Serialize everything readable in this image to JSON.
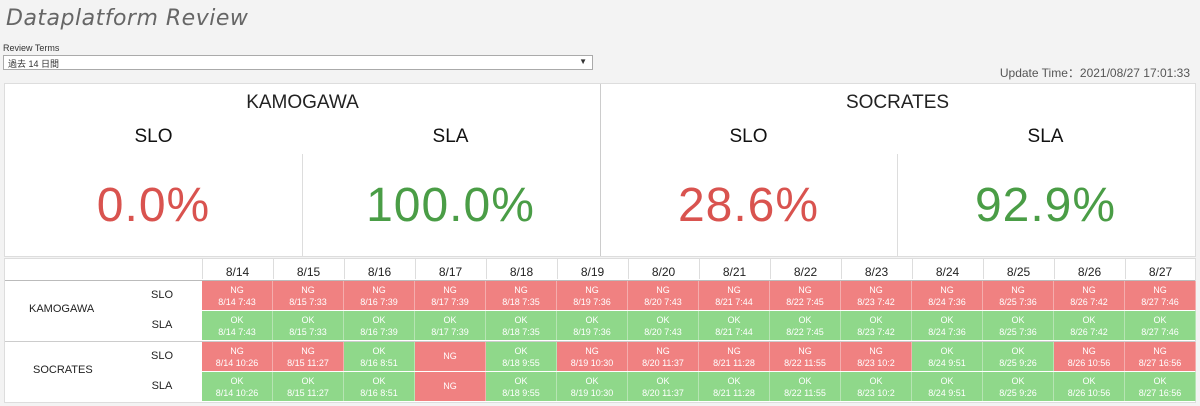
{
  "title": "Dataplatform  Review",
  "review_terms": {
    "label": "Review Terms",
    "value": "過去 14 日間",
    "arrow": "▼"
  },
  "update_time": "Update Time：2021/08/27 17:01:33",
  "colors": {
    "ng": "#f08181",
    "ok": "#8fd88a",
    "value_red": "#d9534f",
    "value_green": "#4a9d46"
  },
  "summary": [
    {
      "name": "KAMOGAWA",
      "metrics": [
        {
          "label": "SLO",
          "value": "0.0%",
          "status": "red"
        },
        {
          "label": "SLA",
          "value": "100.0%",
          "status": "green"
        }
      ]
    },
    {
      "name": "SOCRATES",
      "metrics": [
        {
          "label": "SLO",
          "value": "28.6%",
          "status": "red"
        },
        {
          "label": "SLA",
          "value": "92.9%",
          "status": "green"
        }
      ]
    }
  ],
  "dates": [
    "8/14",
    "8/15",
    "8/16",
    "8/17",
    "8/18",
    "8/19",
    "8/20",
    "8/21",
    "8/22",
    "8/23",
    "8/24",
    "8/25",
    "8/26",
    "8/27"
  ],
  "services": [
    {
      "name": "KAMOGAWA",
      "rows": [
        {
          "metric": "SLO",
          "cells": [
            {
              "status": "NG",
              "time": "8/14 7:43"
            },
            {
              "status": "NG",
              "time": "8/15 7:33"
            },
            {
              "status": "NG",
              "time": "8/16 7:39"
            },
            {
              "status": "NG",
              "time": "8/17 7:39"
            },
            {
              "status": "NG",
              "time": "8/18 7:35"
            },
            {
              "status": "NG",
              "time": "8/19 7:36"
            },
            {
              "status": "NG",
              "time": "8/20 7:43"
            },
            {
              "status": "NG",
              "time": "8/21 7:44"
            },
            {
              "status": "NG",
              "time": "8/22 7:45"
            },
            {
              "status": "NG",
              "time": "8/23 7:42"
            },
            {
              "status": "NG",
              "time": "8/24 7:36"
            },
            {
              "status": "NG",
              "time": "8/25 7:36"
            },
            {
              "status": "NG",
              "time": "8/26 7:42"
            },
            {
              "status": "NG",
              "time": "8/27 7:46"
            }
          ]
        },
        {
          "metric": "SLA",
          "cells": [
            {
              "status": "OK",
              "time": "8/14 7:43"
            },
            {
              "status": "OK",
              "time": "8/15 7:33"
            },
            {
              "status": "OK",
              "time": "8/16 7:39"
            },
            {
              "status": "OK",
              "time": "8/17 7:39"
            },
            {
              "status": "OK",
              "time": "8/18 7:35"
            },
            {
              "status": "OK",
              "time": "8/19 7:36"
            },
            {
              "status": "OK",
              "time": "8/20 7:43"
            },
            {
              "status": "OK",
              "time": "8/21 7:44"
            },
            {
              "status": "OK",
              "time": "8/22 7:45"
            },
            {
              "status": "OK",
              "time": "8/23 7:42"
            },
            {
              "status": "OK",
              "time": "8/24 7:36"
            },
            {
              "status": "OK",
              "time": "8/25 7:36"
            },
            {
              "status": "OK",
              "time": "8/26 7:42"
            },
            {
              "status": "OK",
              "time": "8/27 7:46"
            }
          ]
        }
      ]
    },
    {
      "name": "SOCRATES",
      "rows": [
        {
          "metric": "SLO",
          "cells": [
            {
              "status": "NG",
              "time": "8/14 10:26"
            },
            {
              "status": "NG",
              "time": "8/15 11:27"
            },
            {
              "status": "OK",
              "time": "8/16 8:51"
            },
            {
              "status": "NG",
              "time": ""
            },
            {
              "status": "OK",
              "time": "8/18 9:55"
            },
            {
              "status": "NG",
              "time": "8/19 10:30"
            },
            {
              "status": "NG",
              "time": "8/20 11:37"
            },
            {
              "status": "NG",
              "time": "8/21 11:28"
            },
            {
              "status": "NG",
              "time": "8/22 11:55"
            },
            {
              "status": "NG",
              "time": "8/23 10:2"
            },
            {
              "status": "OK",
              "time": "8/24 9:51"
            },
            {
              "status": "OK",
              "time": "8/25 9:26"
            },
            {
              "status": "NG",
              "time": "8/26 10:56"
            },
            {
              "status": "NG",
              "time": "8/27 16:56"
            }
          ]
        },
        {
          "metric": "SLA",
          "cells": [
            {
              "status": "OK",
              "time": "8/14 10:26"
            },
            {
              "status": "OK",
              "time": "8/15 11:27"
            },
            {
              "status": "OK",
              "time": "8/16 8:51"
            },
            {
              "status": "NG",
              "time": ""
            },
            {
              "status": "OK",
              "time": "8/18 9:55"
            },
            {
              "status": "OK",
              "time": "8/19 10:30"
            },
            {
              "status": "OK",
              "time": "8/20 11:37"
            },
            {
              "status": "OK",
              "time": "8/21 11:28"
            },
            {
              "status": "OK",
              "time": "8/22 11:55"
            },
            {
              "status": "OK",
              "time": "8/23 10:2"
            },
            {
              "status": "OK",
              "time": "8/24 9:51"
            },
            {
              "status": "OK",
              "time": "8/25 9:26"
            },
            {
              "status": "OK",
              "time": "8/26 10:56"
            },
            {
              "status": "OK",
              "time": "8/27 16:56"
            }
          ]
        }
      ]
    }
  ]
}
